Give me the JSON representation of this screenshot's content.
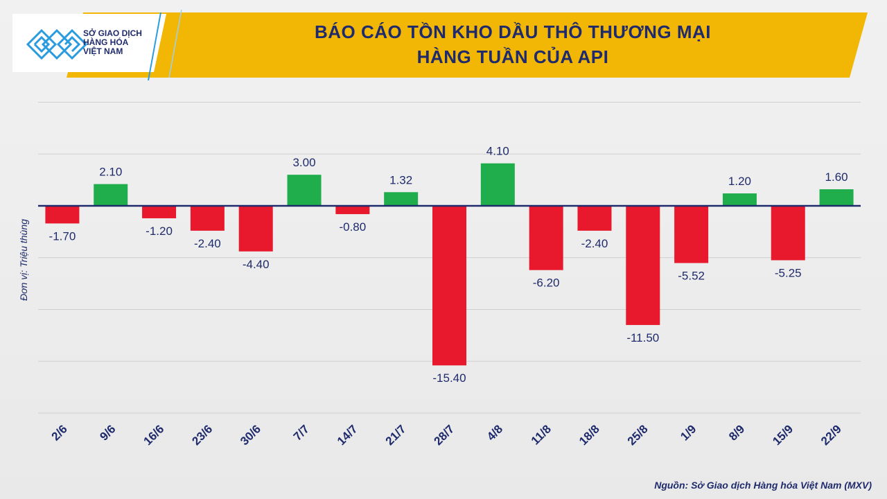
{
  "header": {
    "logo_text_line1": "SỞ GIAO DỊCH",
    "logo_text_line2": "HÀNG HÓA",
    "logo_text_line3": "VIỆT NAM",
    "title_line1": "BÁO CÁO TỒN KHO DẦU THÔ THƯƠNG MẠI",
    "title_line2": "HÀNG TUẦN CỦA API"
  },
  "footer": {
    "source": "Nguồn: Sở Giao dịch Hàng hóa Việt Nam (MXV)"
  },
  "colors": {
    "positive": "#1fae4b",
    "negative": "#e8192c",
    "title_text": "#1e2a6b",
    "banner": "#f2b705",
    "logo_blue": "#2b9be0",
    "zero_line": "#1e2a6b"
  },
  "chart_data": {
    "type": "bar",
    "title": "BÁO CÁO TỒN KHO DẦU THÔ THƯƠNG MẠI HÀNG TUẦN CỦA API",
    "ylabel": "Đơn vị: Triệu thùng",
    "xlabel": "",
    "categories": [
      "2/6",
      "9/6",
      "16/6",
      "23/6",
      "30/6",
      "7/7",
      "14/7",
      "21/7",
      "28/7",
      "4/8",
      "11/8",
      "18/8",
      "25/8",
      "1/9",
      "8/9",
      "15/9",
      "22/9"
    ],
    "values": [
      -1.7,
      2.1,
      -1.2,
      -2.4,
      -4.4,
      3.0,
      -0.8,
      1.32,
      -15.4,
      4.1,
      -6.2,
      -2.4,
      -11.5,
      -5.52,
      1.2,
      -5.25,
      1.6
    ],
    "value_labels": [
      "-1.70",
      "2.10",
      "-1.20",
      "-2.40",
      "-4.40",
      "3.00",
      "-0.80",
      "1.32",
      "-15.40",
      "4.10",
      "-6.20",
      "-2.40",
      "-11.50",
      "-5.52",
      "1.20",
      "-5.25",
      "1.60"
    ],
    "ylim": [
      -20,
      10
    ],
    "grid": true,
    "legend": "none"
  }
}
